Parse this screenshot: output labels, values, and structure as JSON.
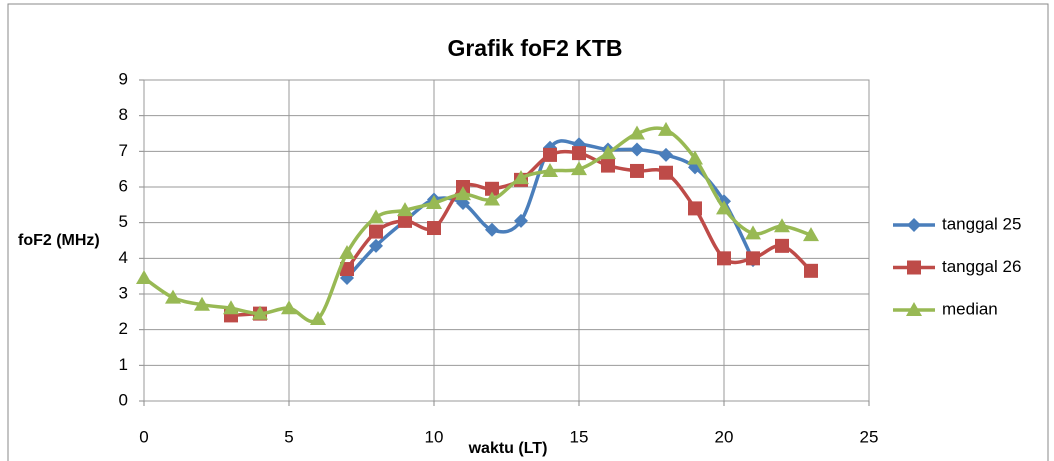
{
  "chart_data": {
    "type": "line",
    "title": "Grafik foF2 KTB",
    "xlabel": "waktu (LT)",
    "ylabel": "foF2 (MHz)",
    "x": [
      0,
      1,
      2,
      3,
      4,
      5,
      6,
      7,
      8,
      9,
      10,
      11,
      12,
      13,
      14,
      15,
      16,
      17,
      18,
      19,
      20,
      21,
      22,
      23
    ],
    "series": [
      {
        "name": "tanggal 25",
        "color": "#4a7ebb",
        "marker": "diamond",
        "values": [
          null,
          null,
          null,
          null,
          null,
          null,
          null,
          3.45,
          4.35,
          5.05,
          5.65,
          5.55,
          4.8,
          5.05,
          7.1,
          7.2,
          7.05,
          7.05,
          6.9,
          6.55,
          5.6,
          3.95,
          null,
          null
        ]
      },
      {
        "name": "tanggal 26",
        "color": "#be4b48",
        "marker": "square",
        "values": [
          null,
          null,
          null,
          2.4,
          2.45,
          null,
          null,
          3.7,
          4.75,
          5.05,
          4.85,
          6.0,
          5.95,
          6.2,
          6.9,
          6.95,
          6.6,
          6.45,
          6.4,
          5.4,
          4.0,
          4.0,
          4.35,
          3.65
        ]
      },
      {
        "name": "median",
        "color": "#98b954",
        "marker": "triangle",
        "values": [
          3.45,
          2.9,
          2.7,
          2.6,
          2.45,
          2.6,
          2.3,
          4.15,
          5.15,
          5.35,
          5.55,
          5.8,
          5.65,
          6.25,
          6.45,
          6.5,
          6.95,
          7.5,
          7.6,
          6.8,
          5.4,
          4.7,
          4.9,
          4.65
        ]
      }
    ],
    "xlim": [
      0,
      25
    ],
    "xticks": [
      0,
      5,
      10,
      15,
      20,
      25
    ],
    "ylim": [
      0,
      9
    ],
    "yticks": [
      0,
      1,
      2,
      3,
      4,
      5,
      6,
      7,
      8,
      9
    ],
    "grid": true,
    "smooth": true,
    "legend": "right"
  }
}
